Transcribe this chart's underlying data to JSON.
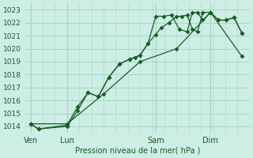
{
  "bg_color": "#cceee4",
  "grid_color": "#aad4c8",
  "line_color": "#1a5c2a",
  "title": "Pression niveau de la mer( hPa )",
  "ylim": [
    1013.5,
    1023.5
  ],
  "yticks": [
    1014,
    1015,
    1016,
    1017,
    1018,
    1019,
    1020,
    1021,
    1022,
    1023
  ],
  "day_labels": [
    "Ven",
    "Lun",
    "Sam",
    "Dim"
  ],
  "day_positions": [
    0,
    14,
    48,
    69
  ],
  "vline_positions": [
    0,
    14,
    48,
    69
  ],
  "xlim": [
    -2,
    84
  ],
  "series1_x": [
    0,
    3,
    14,
    18,
    22,
    26,
    30,
    34,
    38,
    40,
    42,
    45,
    48,
    50,
    53,
    56,
    58,
    60,
    62,
    64,
    66,
    69,
    72,
    75,
    78,
    81
  ],
  "series1_y": [
    1014.2,
    1013.8,
    1014.0,
    1015.2,
    1016.6,
    1016.3,
    1017.8,
    1018.8,
    1019.2,
    1019.3,
    1019.5,
    1020.4,
    1021.1,
    1021.6,
    1022.0,
    1022.5,
    1022.5,
    1022.6,
    1021.5,
    1021.3,
    1022.8,
    1022.8,
    1022.2,
    1022.2,
    1022.4,
    1021.2
  ],
  "series2_x": [
    0,
    3,
    14,
    18,
    22,
    26,
    30,
    34,
    38,
    42,
    45,
    48,
    51,
    54,
    57,
    60,
    62,
    64,
    66,
    69,
    72,
    75,
    78,
    81
  ],
  "series2_y": [
    1014.2,
    1013.8,
    1014.1,
    1015.5,
    1016.6,
    1016.3,
    1017.8,
    1018.8,
    1019.2,
    1019.5,
    1020.4,
    1022.5,
    1022.5,
    1022.6,
    1021.5,
    1021.3,
    1022.8,
    1022.8,
    1022.2,
    1022.8,
    1022.2,
    1022.2,
    1022.4,
    1021.2
  ],
  "series3_x": [
    0,
    14,
    28,
    42,
    56,
    69,
    81
  ],
  "series3_y": [
    1014.2,
    1014.2,
    1016.5,
    1019.0,
    1020.0,
    1022.8,
    1019.4
  ]
}
